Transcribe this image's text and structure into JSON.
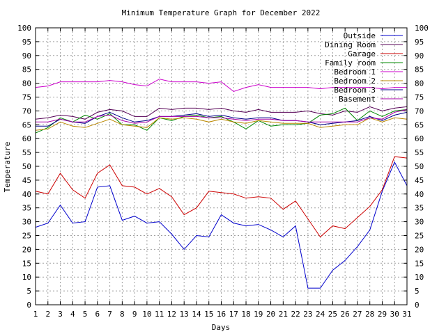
{
  "chart_data": {
    "type": "line",
    "title": "Minimum Temperature Graph for December 2022",
    "xlabel": "Days",
    "ylabel": "Temperature",
    "xlim": [
      1,
      31
    ],
    "ylim": [
      0,
      100
    ],
    "x_ticks": [
      "1",
      "2",
      "3",
      "4",
      "5",
      "6",
      "7",
      "8",
      "9",
      "10",
      "11",
      "12",
      "13",
      "14",
      "15",
      "16",
      "17",
      "18",
      "19",
      "20",
      "21",
      "22",
      "23",
      "24",
      "25",
      "26",
      "27",
      "28",
      "29",
      "30",
      "31"
    ],
    "y_ticks": [
      "0",
      "5",
      "10",
      "15",
      "20",
      "25",
      "30",
      "35",
      "40",
      "45",
      "50",
      "55",
      "60",
      "65",
      "70",
      "75",
      "80",
      "85",
      "90",
      "95",
      "100"
    ],
    "grid": true,
    "legend_position": "top-right",
    "x": [
      1,
      2,
      3,
      4,
      5,
      6,
      7,
      8,
      9,
      10,
      11,
      12,
      13,
      14,
      15,
      16,
      17,
      18,
      19,
      20,
      21,
      22,
      23,
      24,
      25,
      26,
      27,
      28,
      29,
      30,
      31
    ],
    "series": [
      {
        "name": "Outside",
        "color": "#0000cc",
        "values": [
          28,
          29.5,
          36,
          29.5,
          30,
          42.5,
          43,
          30.5,
          32,
          29.5,
          30,
          25.5,
          20,
          25,
          24.5,
          32.5,
          29.5,
          28.5,
          29,
          27,
          24.5,
          28.5,
          6,
          6,
          12.5,
          16,
          21,
          27,
          41,
          51.5,
          43
        ]
      },
      {
        "name": "Dining Room",
        "color": "#550055",
        "values": [
          67,
          67.5,
          68.5,
          68,
          67,
          69.5,
          70.5,
          70,
          68,
          68,
          71,
          70.5,
          71,
          71,
          70.5,
          71,
          70,
          69.5,
          70.5,
          69.5,
          69.5,
          69.5,
          70,
          69,
          68.5,
          70,
          69.5,
          71.5,
          70,
          71,
          71.5
        ]
      },
      {
        "name": "Garage",
        "color": "#cc0000",
        "values": [
          41,
          40,
          47.5,
          41.5,
          38.5,
          47.5,
          50.5,
          43,
          42.5,
          40,
          42,
          39,
          32.5,
          35,
          41,
          40.5,
          40,
          38.5,
          39,
          38.5,
          34.5,
          37.5,
          31,
          24.5,
          28.5,
          27.5,
          31.5,
          35.5,
          41.5,
          53.5,
          53
        ]
      },
      {
        "name": "Family room",
        "color": "#008800",
        "values": [
          62,
          64,
          67.5,
          66,
          68.5,
          67,
          69,
          65,
          65,
          63,
          67.5,
          66.5,
          68,
          68.5,
          67.5,
          68,
          66,
          63.5,
          66.5,
          64.5,
          65,
          65,
          65.5,
          68.5,
          69,
          71,
          66.5,
          70,
          68,
          70,
          70.5
        ]
      },
      {
        "name": "Bedroom 1",
        "color": "#cc00cc",
        "values": [
          78.5,
          79,
          80.5,
          80.5,
          80.5,
          80.5,
          81,
          80.5,
          79.5,
          79,
          81.5,
          80.5,
          80.5,
          80.5,
          80,
          80.5,
          77,
          78.5,
          79.5,
          78.5,
          78.5,
          78.5,
          78.5,
          78,
          78.5,
          78.5,
          78.5,
          78.5,
          78,
          78.5,
          78.5
        ]
      },
      {
        "name": "Bedroom 2",
        "color": "#bb8800",
        "values": [
          63,
          63.5,
          66,
          64.5,
          64,
          65.5,
          67,
          65,
          64.5,
          64,
          67.5,
          67,
          67.5,
          67,
          66,
          67,
          66,
          65.5,
          66.5,
          66,
          65.5,
          65.5,
          65.5,
          64,
          64.5,
          65,
          65,
          67.5,
          66,
          67.5,
          67
        ]
      },
      {
        "name": "Bedroom 3",
        "color": "#000088",
        "values": [
          64.5,
          64.5,
          67,
          66,
          65.5,
          68,
          69.5,
          67.5,
          66,
          66.5,
          68,
          68,
          68.5,
          69,
          68,
          68.5,
          67.5,
          67,
          67.5,
          67.5,
          66.5,
          66.5,
          66,
          65,
          65.5,
          66,
          66.5,
          68,
          66.5,
          68.5,
          69.5
        ]
      },
      {
        "name": "Basement",
        "color": "#aa00aa",
        "values": [
          66,
          66,
          67,
          66,
          66,
          68,
          68.5,
          66.5,
          65.5,
          66,
          68,
          68,
          68,
          68,
          67.5,
          67.5,
          67,
          66.5,
          67,
          67,
          66.5,
          66.5,
          66,
          66,
          66,
          66,
          66,
          67.5,
          67,
          69.5,
          70.5
        ]
      }
    ]
  }
}
